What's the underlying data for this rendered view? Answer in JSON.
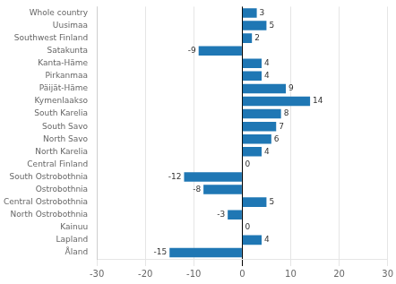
{
  "chart_data": {
    "type": "bar",
    "orientation": "horizontal",
    "categories": [
      "Whole country",
      "Uusimaa",
      "Southwest Finland",
      "Satakunta",
      "Kanta-Häme",
      "Pirkanmaa",
      "Päijät-Häme",
      "Kymenlaakso",
      "South Karelia",
      "South Savo",
      "North Savo",
      "North Karelia",
      "Central Finland",
      "South Ostrobothnia",
      "Ostrobothnia",
      "Central Ostrobothnia",
      "North Ostrobothnia",
      "Kainuu",
      "Lapland",
      "Åland"
    ],
    "values": [
      3,
      5,
      2,
      -9,
      4,
      4,
      9,
      14,
      8,
      7,
      6,
      4,
      0,
      -12,
      -8,
      5,
      -3,
      0,
      4,
      -15
    ],
    "color": "#1f77b4",
    "xlim": [
      -30,
      30
    ],
    "xticks": [
      -30,
      -20,
      -10,
      0,
      10,
      20,
      30
    ],
    "grid": true,
    "data_labels": true
  }
}
